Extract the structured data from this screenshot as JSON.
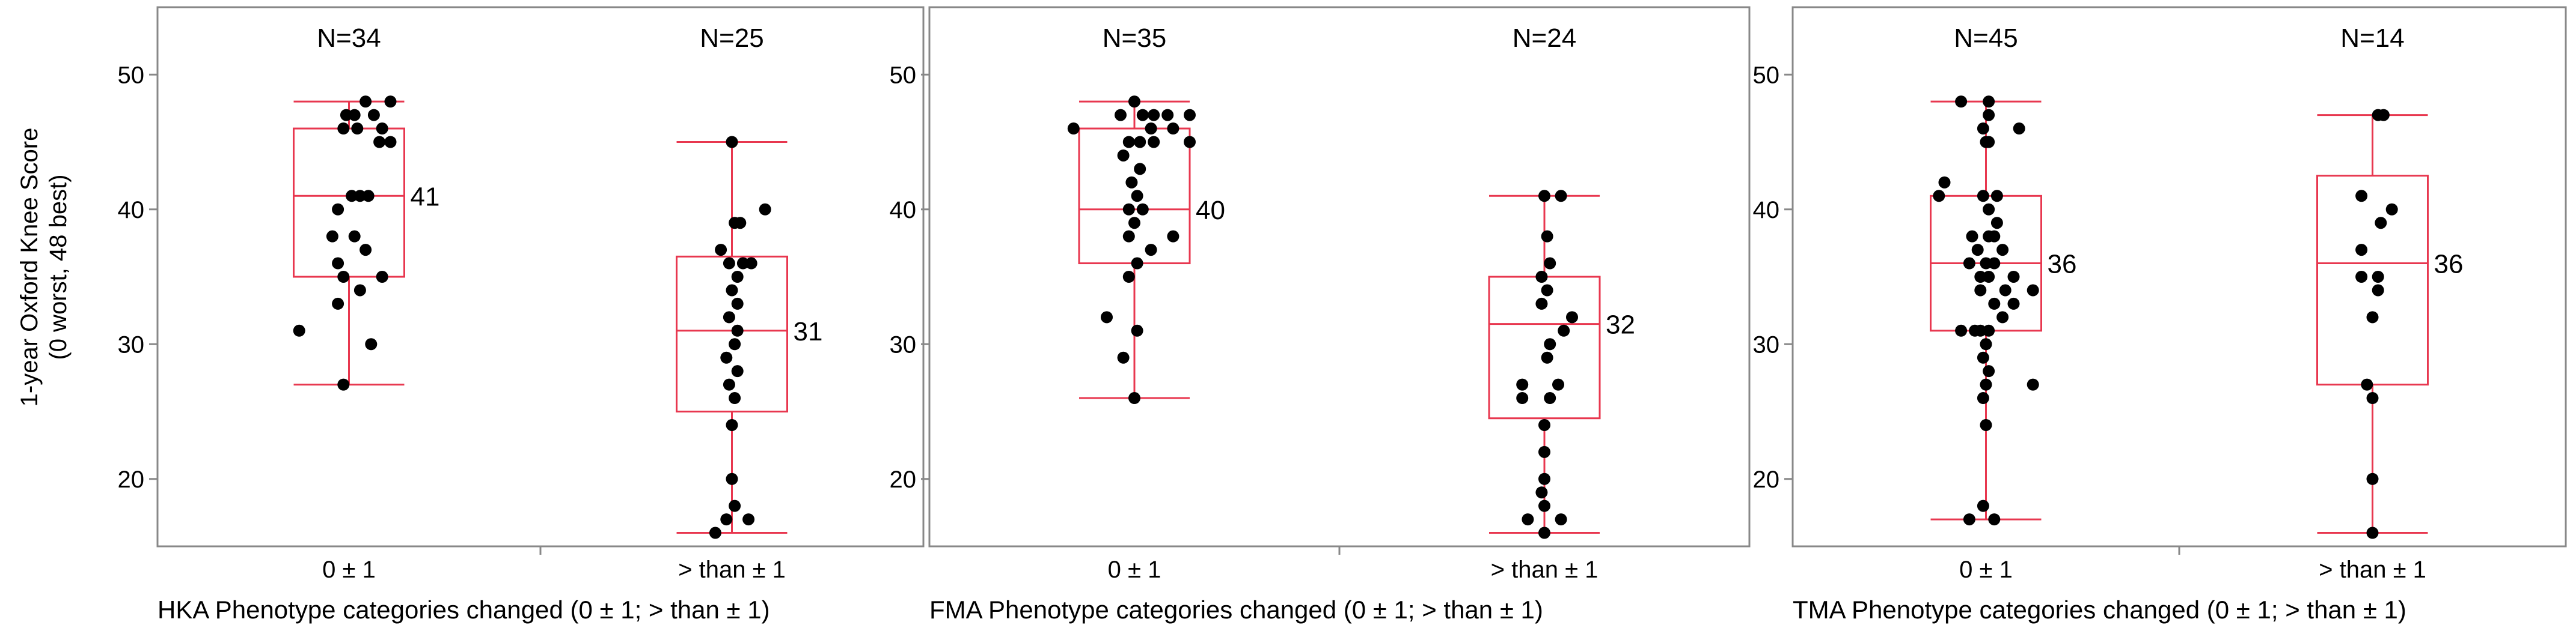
{
  "ylabel_line1": "1-year Oxford Knee Score",
  "ylabel_line2": "(0 worst, 48 best)",
  "colors": {
    "box": "#e8374f",
    "point": "#000000",
    "frame": "#888888",
    "grid": "#aaaaaa"
  },
  "chart_data": [
    {
      "type": "box",
      "xlabel": "HKA Phenotype categories changed (0 ± 1; > than ± 1)",
      "ylim": [
        15,
        55
      ],
      "yticks": [
        20,
        30,
        40,
        50
      ],
      "categories": [
        "0 ± 1",
        "> than ± 1"
      ],
      "groups": [
        {
          "category": "0 ± 1",
          "n_label": "N=34",
          "min": 27,
          "q1": 35,
          "median": 41,
          "q3": 46,
          "max": 48,
          "median_label": "41",
          "points": [
            [
              -0.9,
              31
            ],
            [
              -0.1,
              27
            ],
            [
              0.4,
              30
            ],
            [
              -0.2,
              33
            ],
            [
              0.2,
              34
            ],
            [
              0.6,
              35
            ],
            [
              -0.1,
              35
            ],
            [
              -0.2,
              36
            ],
            [
              0.3,
              37
            ],
            [
              -0.3,
              38
            ],
            [
              0.1,
              38
            ],
            [
              -0.2,
              40
            ],
            [
              0.2,
              41
            ],
            [
              0.05,
              41
            ],
            [
              0.35,
              41
            ],
            [
              0.55,
              45
            ],
            [
              0.75,
              45
            ],
            [
              -0.1,
              46
            ],
            [
              0.15,
              46
            ],
            [
              0.45,
              47
            ],
            [
              0.1,
              47
            ],
            [
              -0.05,
              47
            ],
            [
              0.3,
              48
            ],
            [
              0.75,
              48
            ],
            [
              0.6,
              46
            ]
          ]
        },
        {
          "category": "> than ± 1",
          "n_label": "N=25",
          "min": 16,
          "q1": 25,
          "median": 31,
          "q3": 36.5,
          "max": 45,
          "median_label": "31",
          "points": [
            [
              -0.3,
              16
            ],
            [
              0.3,
              17
            ],
            [
              -0.1,
              17
            ],
            [
              0.05,
              18
            ],
            [
              0.0,
              20
            ],
            [
              0.0,
              24
            ],
            [
              0.05,
              26
            ],
            [
              -0.05,
              27
            ],
            [
              0.1,
              28
            ],
            [
              -0.1,
              29
            ],
            [
              0.05,
              30
            ],
            [
              0.1,
              31
            ],
            [
              -0.05,
              32
            ],
            [
              0.1,
              33
            ],
            [
              0.0,
              34
            ],
            [
              0.1,
              35
            ],
            [
              -0.05,
              36
            ],
            [
              0.2,
              36
            ],
            [
              0.35,
              36
            ],
            [
              -0.2,
              37
            ],
            [
              0.05,
              39
            ],
            [
              0.15,
              39
            ],
            [
              0.6,
              40
            ],
            [
              0.0,
              45
            ]
          ]
        }
      ]
    },
    {
      "type": "box",
      "xlabel": "FMA Phenotype categories changed (0 ± 1; > than ± 1)",
      "ylim": [
        15,
        55
      ],
      "yticks": [
        20,
        30,
        40,
        50
      ],
      "categories": [
        "0 ± 1",
        "> than ± 1"
      ],
      "groups": [
        {
          "category": "0 ± 1",
          "n_label": "N=35",
          "min": 26,
          "q1": 36,
          "median": 40,
          "q3": 46,
          "max": 48,
          "median_label": "40",
          "points": [
            [
              0.0,
              26
            ],
            [
              -0.2,
              29
            ],
            [
              0.05,
              31
            ],
            [
              -0.5,
              32
            ],
            [
              -0.1,
              35
            ],
            [
              0.05,
              36
            ],
            [
              0.3,
              37
            ],
            [
              0.7,
              38
            ],
            [
              -0.1,
              38
            ],
            [
              0.0,
              39
            ],
            [
              -0.1,
              40
            ],
            [
              0.15,
              40
            ],
            [
              0.05,
              41
            ],
            [
              -0.05,
              42
            ],
            [
              0.1,
              43
            ],
            [
              -0.2,
              44
            ],
            [
              -0.1,
              45
            ],
            [
              0.1,
              45
            ],
            [
              0.35,
              45
            ],
            [
              1.0,
              45
            ],
            [
              -1.1,
              46
            ],
            [
              0.3,
              46
            ],
            [
              0.7,
              46
            ],
            [
              -0.25,
              47
            ],
            [
              0.15,
              47
            ],
            [
              0.35,
              47
            ],
            [
              0.6,
              47
            ],
            [
              1.0,
              47
            ],
            [
              0.0,
              48
            ]
          ]
        },
        {
          "category": "> than ± 1",
          "n_label": "N=24",
          "min": 16,
          "q1": 24.5,
          "median": 31.5,
          "q3": 35,
          "max": 41,
          "median_label": "32",
          "points": [
            [
              0.0,
              16
            ],
            [
              -0.3,
              17
            ],
            [
              0.3,
              17
            ],
            [
              0.0,
              18
            ],
            [
              -0.05,
              19
            ],
            [
              0.0,
              20
            ],
            [
              0.0,
              22
            ],
            [
              0.0,
              24
            ],
            [
              -0.4,
              26
            ],
            [
              0.1,
              26
            ],
            [
              -0.4,
              27
            ],
            [
              0.25,
              27
            ],
            [
              0.05,
              29
            ],
            [
              0.1,
              30
            ],
            [
              0.35,
              31
            ],
            [
              0.5,
              32
            ],
            [
              -0.05,
              33
            ],
            [
              0.05,
              34
            ],
            [
              -0.05,
              35
            ],
            [
              0.1,
              36
            ],
            [
              0.05,
              38
            ],
            [
              0.0,
              41
            ],
            [
              0.3,
              41
            ]
          ]
        }
      ]
    },
    {
      "type": "box",
      "xlabel": "TMA Phenotype categories changed (0 ± 1; > than ± 1)",
      "ylim": [
        15,
        55
      ],
      "yticks": [
        20,
        30,
        40,
        50
      ],
      "categories": [
        "0 ± 1",
        "> than ± 1"
      ],
      "groups": [
        {
          "category": "0 ± 1",
          "n_label": "N=45",
          "min": 17,
          "q1": 31,
          "median": 36,
          "q3": 41,
          "max": 48,
          "median_label": "36",
          "points": [
            [
              -0.3,
              17
            ],
            [
              0.15,
              17
            ],
            [
              -0.05,
              18
            ],
            [
              0.0,
              24
            ],
            [
              -0.05,
              26
            ],
            [
              0.0,
              27
            ],
            [
              0.85,
              27
            ],
            [
              0.05,
              28
            ],
            [
              -0.05,
              29
            ],
            [
              0.0,
              30
            ],
            [
              -0.45,
              31
            ],
            [
              -0.2,
              31
            ],
            [
              0.05,
              31
            ],
            [
              -0.1,
              31
            ],
            [
              0.3,
              32
            ],
            [
              0.5,
              33
            ],
            [
              0.15,
              33
            ],
            [
              0.85,
              34
            ],
            [
              -0.1,
              34
            ],
            [
              0.35,
              34
            ],
            [
              0.5,
              35
            ],
            [
              -0.1,
              35
            ],
            [
              0.05,
              35
            ],
            [
              -0.3,
              36
            ],
            [
              0.15,
              36
            ],
            [
              0.0,
              36
            ],
            [
              -0.15,
              37
            ],
            [
              0.3,
              37
            ],
            [
              0.05,
              38
            ],
            [
              0.15,
              38
            ],
            [
              -0.25,
              38
            ],
            [
              0.2,
              39
            ],
            [
              0.05,
              40
            ],
            [
              -0.85,
              41
            ],
            [
              -0.05,
              41
            ],
            [
              0.2,
              41
            ],
            [
              -0.75,
              42
            ],
            [
              0.05,
              45
            ],
            [
              0.0,
              45
            ],
            [
              0.6,
              46
            ],
            [
              -0.05,
              46
            ],
            [
              0.05,
              47
            ],
            [
              -0.45,
              48
            ],
            [
              0.05,
              48
            ]
          ]
        },
        {
          "category": "> than ± 1",
          "n_label": "N=14",
          "min": 16,
          "q1": 27,
          "median": 36,
          "q3": 42.5,
          "max": 47,
          "median_label": "36",
          "points": [
            [
              0.0,
              16
            ],
            [
              0.0,
              20
            ],
            [
              0.0,
              26
            ],
            [
              -0.1,
              27
            ],
            [
              0.0,
              32
            ],
            [
              0.1,
              34
            ],
            [
              -0.2,
              35
            ],
            [
              0.1,
              35
            ],
            [
              -0.2,
              37
            ],
            [
              0.15,
              39
            ],
            [
              0.35,
              40
            ],
            [
              -0.2,
              41
            ],
            [
              0.1,
              47
            ],
            [
              0.2,
              47
            ]
          ]
        }
      ]
    }
  ]
}
